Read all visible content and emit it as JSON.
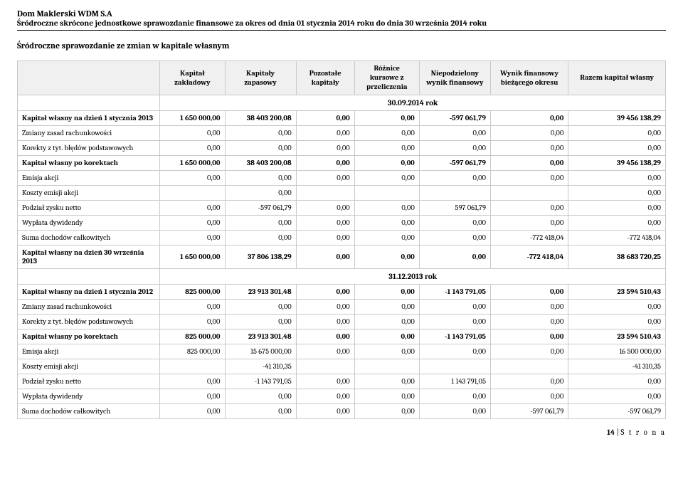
{
  "header": {
    "company": "Dom Maklerski WDM S.A",
    "subtitle": "Śródroczne skrócone jednostkowe sprawozdanie finansowe za okres od dnia 01 stycznia 2014 roku do dnia 30 września 2014 roku",
    "section": "Śródroczne sprawozdanie ze zmian w kapitale własnym"
  },
  "columns": [
    "Kapitał zakładowy",
    "Kapitały zapasowy",
    "Pozostałe kapitały",
    "Różnice kursowe z przeliczenia",
    "Niepodzielony wynik finansowy",
    "Wynik finansowy bieżącego okresu",
    "Razem kapitał własny"
  ],
  "sections": [
    {
      "date": "30.09.2014 rok",
      "rows": [
        {
          "bold": true,
          "label": "Kapitał własny na dzień 1 stycznia 2013",
          "cells": [
            "1 650 000,00",
            "38 403 200,08",
            "0,00",
            "0,00",
            "-597 061,79",
            "0,00",
            "39 456 138,29"
          ]
        },
        {
          "label": "Zmiany zasad rachunkowości",
          "cells": [
            "0,00",
            "0,00",
            "0,00",
            "0,00",
            "0,00",
            "0,00",
            "0,00"
          ]
        },
        {
          "label": "Korekty z tyt. błędów podstawowych",
          "cells": [
            "0,00",
            "0,00",
            "0,00",
            "0,00",
            "0,00",
            "0,00",
            "0,00"
          ]
        },
        {
          "bold": true,
          "label": "Kapitał własny po korektach",
          "cells": [
            "1 650 000,00",
            "38 403 200,08",
            "0,00",
            "0,00",
            "-597 061,79",
            "0,00",
            "39 456 138,29"
          ]
        },
        {
          "label": "Emisja akcji",
          "cells": [
            "0,00",
            "0,00",
            "0,00",
            "0,00",
            "0,00",
            "0,00",
            "0,00"
          ]
        },
        {
          "label": "Koszty emisji akcji",
          "cells": [
            "",
            "0,00",
            "",
            "",
            "",
            "",
            "0,00"
          ]
        },
        {
          "label": "Podział zysku netto",
          "cells": [
            "0,00",
            "-597 061,79",
            "0,00",
            "0,00",
            "597 061,79",
            "0,00",
            "0,00"
          ]
        },
        {
          "label": "Wypłata dywidendy",
          "cells": [
            "0,00",
            "0,00",
            "0,00",
            "0,00",
            "0,00",
            "0,00",
            "0,00"
          ]
        },
        {
          "label": "Suma dochodów całkowitych",
          "cells": [
            "0,00",
            "0,00",
            "0,00",
            "0,00",
            "0,00",
            "-772 418,04",
            "-772 418,04"
          ]
        },
        {
          "bold": true,
          "label": "Kapitał własny na dzień 30 września 2013",
          "cells": [
            "1 650 000,00",
            "37 806 138,29",
            "0,00",
            "0,00",
            "0,00",
            "-772 418,04",
            "38 683 720,25"
          ]
        }
      ]
    },
    {
      "date": "31.12.2013 rok",
      "rows": [
        {
          "bold": true,
          "label": "Kapitał własny na dzień 1 stycznia 2012",
          "cells": [
            "825 000,00",
            "23 913 301,48",
            "0,00",
            "0,00",
            "-1 143 791,05",
            "0,00",
            "23 594 510,43"
          ]
        },
        {
          "label": "Zmiany zasad rachunkowości",
          "cells": [
            "0,00",
            "0,00",
            "0,00",
            "0,00",
            "0,00",
            "0,00",
            "0,00"
          ]
        },
        {
          "label": "Korekty z tyt. błędów podstawowych",
          "cells": [
            "0,00",
            "0,00",
            "0,00",
            "0,00",
            "0,00",
            "0,00",
            "0,00"
          ]
        },
        {
          "bold": true,
          "label": "Kapitał własny po korektach",
          "cells": [
            "825 000,00",
            "23 913 301,48",
            "0,00",
            "0,00",
            "-1 143 791,05",
            "0,00",
            "23 594 510,43"
          ]
        },
        {
          "label": "Emisja akcji",
          "cells": [
            "825 000,00",
            "15 675 000,00",
            "0,00",
            "0,00",
            "0,00",
            "0,00",
            "16 500 000,00"
          ]
        },
        {
          "label": "Koszty emisji akcji",
          "cells": [
            "",
            "-41 310,35",
            "",
            "",
            "",
            "",
            "-41 310,35"
          ]
        },
        {
          "label": "Podział zysku netto",
          "cells": [
            "0,00",
            "-1 143 791,05",
            "0,00",
            "0,00",
            "1 143 791,05",
            "0,00",
            "0,00"
          ]
        },
        {
          "label": "Wypłata dywidendy",
          "cells": [
            "0,00",
            "0,00",
            "0,00",
            "0,00",
            "0,00",
            "0,00",
            "0,00"
          ]
        },
        {
          "label": "Suma dochodów całkowitych",
          "cells": [
            "0,00",
            "0,00",
            "0,00",
            "0,00",
            "0,00",
            "-597 061,79",
            "-597 061,79"
          ]
        }
      ]
    }
  ],
  "footer": {
    "page": "14",
    "label": "S t r o n a"
  }
}
